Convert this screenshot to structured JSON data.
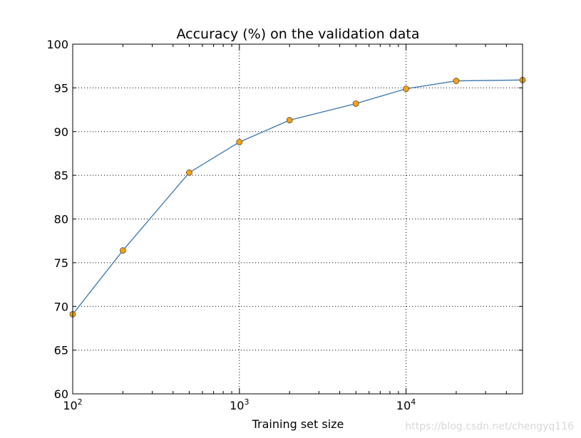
{
  "chart_data": {
    "type": "line",
    "title": "Accuracy (%) on the validation data",
    "xlabel": "Training set size",
    "ylabel": "",
    "x_scale": "log",
    "xlim": [
      100,
      50000
    ],
    "ylim": [
      60,
      100
    ],
    "x": [
      100,
      200,
      500,
      1000,
      2000,
      5000,
      10000,
      20000,
      50000
    ],
    "series": [
      {
        "values": [
          69.1,
          76.4,
          85.3,
          88.8,
          91.3,
          93.2,
          94.9,
          95.8,
          95.9
        ]
      }
    ],
    "x_ticks": [
      {
        "base": "10",
        "exp": "2",
        "value": 100
      },
      {
        "base": "10",
        "exp": "3",
        "value": 1000
      },
      {
        "base": "10",
        "exp": "4",
        "value": 10000
      }
    ],
    "y_ticks": [
      "60",
      "65",
      "70",
      "75",
      "80",
      "85",
      "90",
      "95",
      "100"
    ],
    "grid": true,
    "line_color": "#3b75af",
    "marker_color": "#f5a31a",
    "marker_edge_color": "#5a4a20"
  },
  "watermark": "https://blog.csdn.net/chengyq116"
}
